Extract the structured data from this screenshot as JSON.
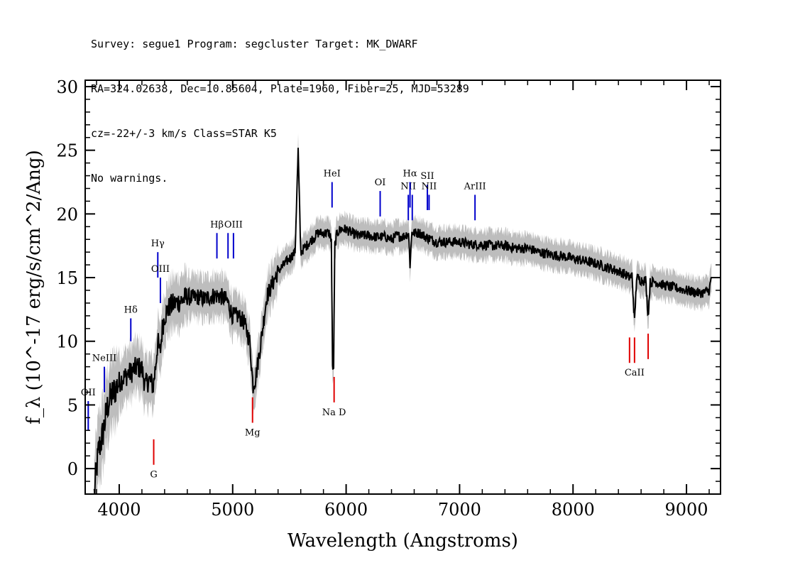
{
  "header": {
    "line1": "Survey: segue1 Program: segcluster Target: MK_DWARF",
    "line2": "RA=324.02638, Dec=10.85604, Plate=1960, Fiber=25, MJD=53289",
    "line3": "cz=-22+/-3 km/s Class=STAR K5",
    "line4": "No warnings."
  },
  "chart_data": {
    "type": "line",
    "xlabel": "Wavelength (Angstroms)",
    "ylabel": "f_λ (10^-17 erg/s/cm^2/Ang)",
    "xlim": [
      3700,
      9300
    ],
    "ylim": [
      -2,
      30.5
    ],
    "xticks": [
      4000,
      5000,
      6000,
      7000,
      8000,
      9000
    ],
    "yticks": [
      0,
      5,
      10,
      15,
      20,
      25,
      30
    ],
    "colors": {
      "spectrum": "#000000",
      "error_band": "#bdbdbd",
      "emission_line": "#0000cc",
      "absorption_line": "#e00000"
    },
    "series": [
      {
        "x": [
          3780,
          3800,
          3820,
          3850,
          3880,
          3900,
          3920,
          3950,
          3980,
          4000,
          4020,
          4050,
          4080,
          4100,
          4130,
          4160,
          4200,
          4230,
          4260,
          4300,
          4320,
          4340,
          4360,
          4380,
          4400,
          4450,
          4500,
          4550,
          4600,
          4650,
          4700,
          4750,
          4800,
          4850,
          4900,
          4950,
          5000,
          5050,
          5100,
          5150,
          5180,
          5200,
          5250,
          5300,
          5350,
          5400,
          5450,
          5500,
          5550,
          5577,
          5600,
          5650,
          5700,
          5750,
          5800,
          5850,
          5870,
          5880,
          5890,
          5900,
          5920,
          5950,
          6000,
          6050,
          6100,
          6150,
          6200,
          6250,
          6300,
          6350,
          6400,
          6450,
          6500,
          6550,
          6563,
          6580,
          6600,
          6650,
          6700,
          6750,
          6800,
          6900,
          7000,
          7100,
          7200,
          7300,
          7400,
          7500,
          7600,
          7700,
          7800,
          7900,
          8000,
          8100,
          8200,
          8300,
          8400,
          8450,
          8498,
          8520,
          8542,
          8560,
          8600,
          8640,
          8662,
          8680,
          8720,
          8800,
          8900,
          9000,
          9100,
          9150,
          9200,
          9220
        ],
        "y": [
          -2,
          0,
          1.5,
          2.5,
          4,
          5,
          5.5,
          6,
          6.5,
          6.8,
          7,
          7.2,
          7.5,
          7.5,
          7.8,
          8,
          7.8,
          6.5,
          7,
          6.5,
          8,
          10,
          9,
          11,
          12,
          12.8,
          13,
          13.2,
          13.5,
          13.4,
          13.5,
          13.3,
          13.5,
          13.6,
          13.5,
          13.2,
          12,
          12,
          11.5,
          10,
          6.5,
          7,
          10,
          13.5,
          14.5,
          15.5,
          16,
          16.5,
          17,
          25,
          17,
          17.5,
          18,
          18.5,
          18.5,
          18.5,
          18,
          8,
          8,
          17.5,
          18.5,
          18.8,
          18.8,
          18.5,
          18.3,
          18.3,
          18.3,
          18.2,
          18.2,
          18.2,
          18,
          18.3,
          18.2,
          18.5,
          16,
          18.6,
          18.5,
          18.5,
          18.2,
          18,
          17.8,
          17.8,
          17.8,
          17.6,
          17.6,
          17.5,
          17.5,
          17.3,
          17.3,
          17,
          16.8,
          16.7,
          16.5,
          16.3,
          16.1,
          15.8,
          15.5,
          15.3,
          15,
          15.2,
          11.5,
          15,
          14.8,
          14.8,
          12,
          14.6,
          14.7,
          14.4,
          14.2,
          14,
          13.8,
          13.8,
          14,
          15
        ]
      }
    ],
    "lines": [
      {
        "label": "OII",
        "wave": 3727,
        "kind": "emission",
        "y_from": 3,
        "y_to": 5.3
      },
      {
        "label": "NeIII",
        "wave": 3869,
        "kind": "emission",
        "y_from": 6,
        "y_to": 8
      },
      {
        "label": "Hδ",
        "wave": 4102,
        "kind": "emission",
        "y_from": 10,
        "y_to": 11.8
      },
      {
        "label": "Hγ",
        "wave": 4340,
        "kind": "emission",
        "y_from": 15,
        "y_to": 17
      },
      {
        "label": "OIII",
        "wave": 4363,
        "kind": "emission",
        "y_from": 13,
        "y_to": 15
      },
      {
        "label": "Hβ",
        "wave": 4861,
        "kind": "emission",
        "y_from": 16.5,
        "y_to": 18.5
      },
      {
        "label": "",
        "wave": 4959,
        "kind": "emission",
        "y_from": 16.5,
        "y_to": 18.5
      },
      {
        "label": "OIII",
        "wave": 5007,
        "kind": "emission",
        "y_from": 16.5,
        "y_to": 18.5
      },
      {
        "label": "HeI",
        "wave": 5876,
        "kind": "emission",
        "y_from": 20.5,
        "y_to": 22.5
      },
      {
        "label": "OI",
        "wave": 6300,
        "kind": "emission",
        "y_from": 19.8,
        "y_to": 21.8
      },
      {
        "label": "NII",
        "wave": 6548,
        "kind": "emission",
        "y_from": 19.5,
        "y_to": 21.5
      },
      {
        "label": "Hα",
        "wave": 6563,
        "kind": "emission",
        "y_from": 20.5,
        "y_to": 22.5
      },
      {
        "label": "",
        "wave": 6583,
        "kind": "emission",
        "y_from": 19.5,
        "y_to": 21.5
      },
      {
        "label": "SII",
        "wave": 6716,
        "kind": "emission",
        "y_from": 20.3,
        "y_to": 22.3
      },
      {
        "label": "NII",
        "wave": 6731,
        "kind": "emission",
        "y_from": 20.3,
        "y_to": 21.5
      },
      {
        "label": "ArIII",
        "wave": 7136,
        "kind": "emission",
        "y_from": 19.5,
        "y_to": 21.5
      },
      {
        "label": "G",
        "wave": 4304,
        "kind": "absorption",
        "y_from": 2.3,
        "y_to": 0.3
      },
      {
        "label": "Mg",
        "wave": 5175,
        "kind": "absorption",
        "y_from": 5.6,
        "y_to": 3.6
      },
      {
        "label": "Na D",
        "wave": 5894,
        "kind": "absorption",
        "y_from": 7.2,
        "y_to": 5.2
      },
      {
        "label": "",
        "wave": 8498,
        "kind": "absorption",
        "y_from": 10.3,
        "y_to": 8.3
      },
      {
        "label": "CaII",
        "wave": 8542,
        "kind": "absorption",
        "y_from": 10.3,
        "y_to": 8.3
      },
      {
        "label": "",
        "wave": 8662,
        "kind": "absorption",
        "y_from": 10.6,
        "y_to": 8.6
      }
    ]
  }
}
